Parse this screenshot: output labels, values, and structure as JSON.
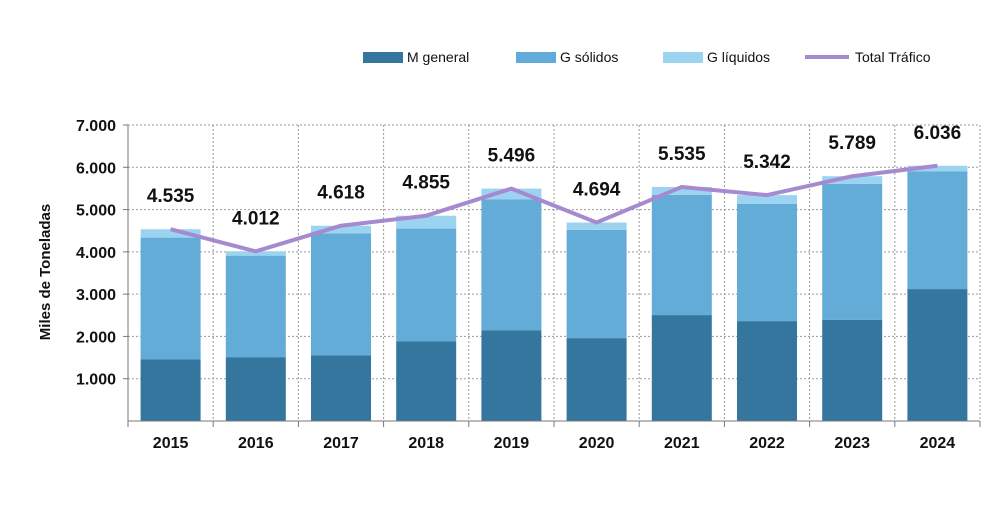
{
  "chart_data": {
    "type": "bar",
    "stacked": true,
    "title": "",
    "xlabel": "",
    "ylabel": "Miles de Toneladas",
    "ylim": [
      0,
      7000
    ],
    "yticks": [
      "1.000",
      "2.000",
      "3.000",
      "4.000",
      "5.000",
      "6.000",
      "7.000"
    ],
    "grid": true,
    "legend_position": "top-right",
    "categories": [
      "2015",
      "2016",
      "2017",
      "2018",
      "2019",
      "2020",
      "2021",
      "2022",
      "2023",
      "2024"
    ],
    "series": [
      {
        "name": "M general",
        "color": "#35769f",
        "values": [
          1455,
          1510,
          1550,
          1880,
          2140,
          1960,
          2505,
          2362,
          2395,
          3120
        ]
      },
      {
        "name": "G sólidos",
        "color": "#63acd8",
        "values": [
          2882,
          2400,
          2890,
          2670,
          3105,
          2560,
          2845,
          2773,
          3215,
          2780
        ]
      },
      {
        "name": "G líquidos",
        "color": "#9bd3f0",
        "values": [
          198,
          102,
          178,
          305,
          251,
          174,
          185,
          207,
          179,
          136
        ]
      }
    ],
    "line_series": {
      "name": "Total Tráfico",
      "color": "#a58ad0",
      "values": [
        4535,
        4012,
        4618,
        4855,
        5496,
        4694,
        5535,
        5342,
        5789,
        6036
      ],
      "labels": [
        "4.535",
        "4.012",
        "4.618",
        "4.855",
        "5.496",
        "4.694",
        "5.535",
        "5.342",
        "5.789",
        "6.036"
      ]
    }
  }
}
